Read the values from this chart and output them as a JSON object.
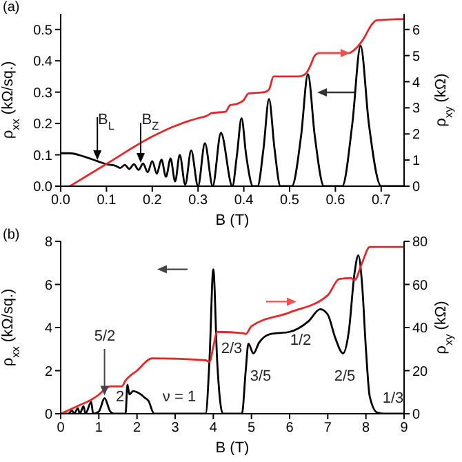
{
  "chart_data": [
    {
      "type": "line",
      "title": "(a)",
      "xlabel": "B  (T)",
      "ylabel": "ρ$_{xx}$  (kΩ/sq.)",
      "y2label": "ρ$_{xy}$  (kΩ)",
      "xlim": [
        0,
        0.75
      ],
      "xticks": [
        {
          "value": 0,
          "label": "0.0"
        },
        0.1,
        0.2,
        0.3,
        0.4,
        0.5,
        0.6,
        0.7
      ],
      "ylim": [
        0,
        0.55
      ],
      "yticks": [
        {
          "value": 0,
          "label": "0.0"
        },
        0.1,
        0.2,
        0.3,
        0.4,
        0.5
      ],
      "y2lim": [
        0,
        6.6
      ],
      "y2ticks": [
        0,
        1,
        2,
        3,
        4,
        5,
        6
      ],
      "series": [
        {
          "color": "#000000",
          "axis": "y",
          "x": [
            0,
            0.02,
            0.05,
            0.08,
            0.1,
            0.12,
            0.13,
            0.14,
            0.15,
            0.16,
            0.17,
            0.18,
            0.19,
            0.2,
            0.21,
            0.22,
            0.23,
            0.24,
            0.25,
            0.26,
            0.272,
            0.285,
            0.3,
            0.315,
            0.332,
            0.35,
            0.375,
            0.385,
            0.395,
            0.405,
            0.42,
            0.43,
            0.443,
            0.455,
            0.467,
            0.48,
            0.505,
            0.525,
            0.54,
            0.555,
            0.575,
            0.615,
            0.637,
            0.655,
            0.673,
            0.7,
            0.75
          ],
          "values": [
            0.105,
            0.105,
            0.095,
            0.08,
            0.07,
            0.065,
            0.058,
            0.068,
            0.055,
            0.07,
            0.052,
            0.072,
            0.045,
            0.08,
            0.04,
            0.085,
            0.03,
            0.088,
            0.015,
            0.1,
            0.005,
            0.114,
            0,
            0.137,
            0,
            0.17,
            0,
            0.1,
            0.217,
            0.1,
            0,
            0,
            0.12,
            0.278,
            0.12,
            0,
            0,
            0.16,
            0.357,
            0.16,
            0,
            0,
            0.2,
            0.448,
            0.2,
            0,
            0
          ]
        },
        {
          "color": "#e8262a",
          "axis": "y2",
          "x": [
            0.02,
            0.1,
            0.2,
            0.28,
            0.3,
            0.32,
            0.33,
            0.36,
            0.37,
            0.385,
            0.4,
            0.41,
            0.445,
            0.455,
            0.465,
            0.52,
            0.535,
            0.545,
            0.555,
            0.565,
            0.63,
            0.64,
            0.66,
            0.68,
            0.69,
            0.75
          ],
          "values": [
            0,
            0.85,
            1.9,
            2.5,
            2.6,
            2.7,
            2.8,
            2.85,
            3.1,
            3.15,
            3.3,
            3.55,
            3.6,
            3.7,
            4.2,
            4.2,
            4.3,
            4.6,
            5.0,
            5.1,
            5.1,
            5.2,
            5.6,
            6.2,
            6.35,
            6.4
          ]
        }
      ],
      "annotations": [
        "B$_{L}$",
        "B$_{Z}$"
      ]
    },
    {
      "type": "line",
      "title": "(b)",
      "xlabel": "B  (T)",
      "ylabel": "ρ$_{xx}$  (kΩ/sq.)",
      "y2label": "ρ$_{xy}$  (kΩ)",
      "xlim": [
        0,
        9
      ],
      "xticks": [
        0,
        1,
        2,
        3,
        4,
        5,
        6,
        7,
        8,
        9
      ],
      "ylim": [
        0,
        8
      ],
      "yticks": [
        0,
        2,
        4,
        6,
        8
      ],
      "y2lim": [
        0,
        80
      ],
      "y2ticks": [
        0,
        20,
        40,
        60,
        80
      ],
      "series": [
        {
          "color": "#000000",
          "axis": "y",
          "x": [
            0,
            0.2,
            0.3,
            0.35,
            0.45,
            0.5,
            0.6,
            0.65,
            0.8,
            0.85,
            1.0,
            1.15,
            1.3,
            1.4,
            1.7,
            1.75,
            1.8,
            1.9,
            2.0,
            2.1,
            2.2,
            2.3,
            2.45,
            3.8,
            3.9,
            4.0,
            4.1,
            4.25,
            4.75,
            4.85,
            4.92,
            5.05,
            5.2,
            5.5,
            6.0,
            6.5,
            6.8,
            7.0,
            7.2,
            7.4,
            7.55,
            7.7,
            7.8,
            7.9,
            8.0,
            8.1,
            8.3,
            8.5,
            9
          ],
          "values": [
            0,
            0,
            0.15,
            0,
            0.25,
            0,
            0.35,
            0,
            0.55,
            0,
            0.1,
            0.72,
            0.1,
            0,
            0,
            1.35,
            0.9,
            1.05,
            1.0,
            0.9,
            0.75,
            0.6,
            0,
            0,
            2.5,
            6.7,
            2.5,
            0,
            0,
            2.0,
            3.25,
            2.8,
            3.3,
            3.7,
            3.8,
            4.3,
            4.85,
            4.6,
            3.5,
            2.8,
            3.8,
            6.5,
            7.35,
            6.0,
            3.0,
            0.8,
            0.05,
            0,
            0
          ]
        },
        {
          "color": "#e8262a",
          "axis": "y2",
          "x": [
            0,
            0.5,
            0.8,
            1.0,
            1.2,
            1.3,
            1.6,
            1.7,
            2.0,
            2.4,
            3.8,
            3.9,
            4.0,
            4.1,
            4.8,
            4.85,
            5.0,
            6.0,
            7.0,
            7.3,
            7.6,
            7.7,
            7.9,
            8.1,
            9
          ],
          "values": [
            0,
            4,
            6.5,
            8.8,
            12,
            12.7,
            12.7,
            15.4,
            20,
            25.7,
            24.8,
            24,
            31,
            38,
            37.3,
            37,
            40.6,
            47,
            55,
            62.5,
            63,
            62,
            70,
            77.4,
            77.4
          ]
        }
      ],
      "annotations": [
        "5/2",
        "2",
        "ν = 1",
        "2/3",
        "3/5",
        "1/2",
        "2/5",
        "1/3"
      ]
    }
  ]
}
